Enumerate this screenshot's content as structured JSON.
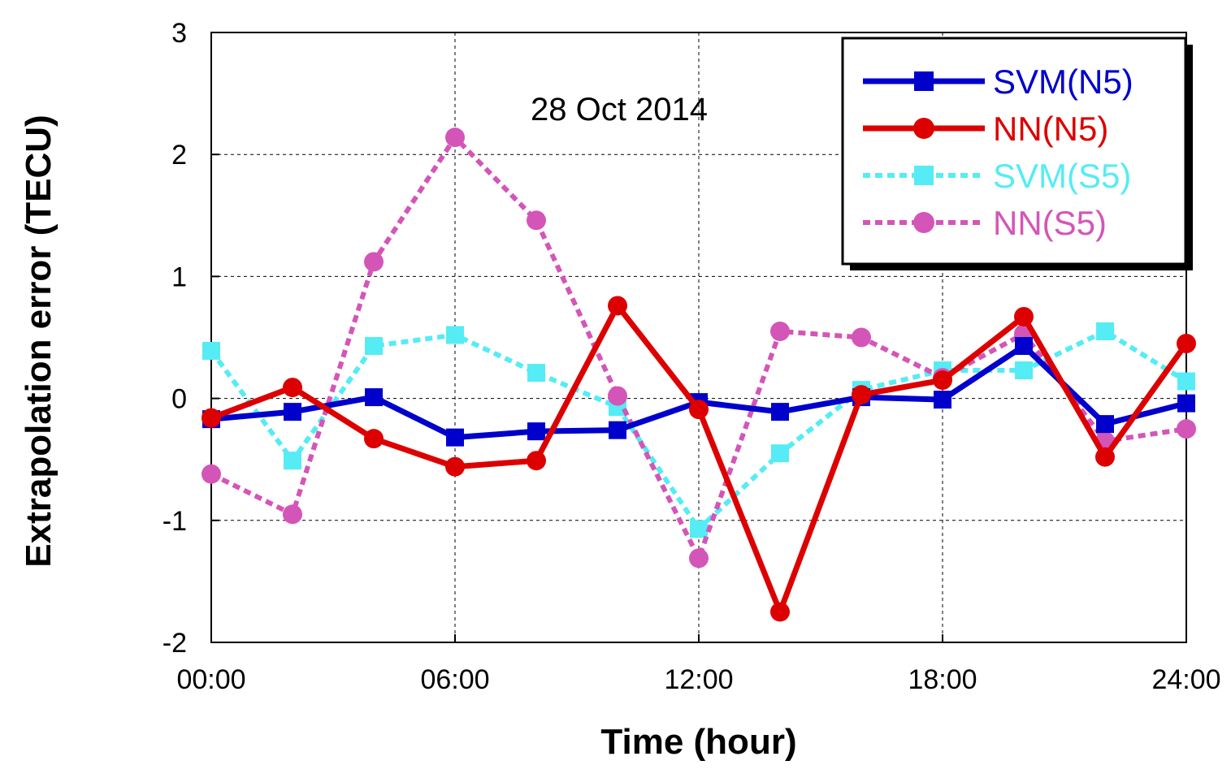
{
  "chart_data": {
    "type": "line",
    "title": "",
    "annotation": "28 Oct 2014",
    "xlabel": "Time (hour)",
    "ylabel": "Extrapolation error (TECU)",
    "xlim": [
      0,
      24
    ],
    "ylim": [
      -2,
      3
    ],
    "x_ticks": [
      0,
      6,
      12,
      18,
      24
    ],
    "x_tick_labels": [
      "00:00",
      "06:00",
      "12:00",
      "18:00",
      "24:00"
    ],
    "y_ticks": [
      -2,
      -1,
      0,
      1,
      2,
      3
    ],
    "y_tick_labels": [
      "-2",
      "-1",
      "0",
      "1",
      "2",
      "3"
    ],
    "grid": true,
    "legend_position": "top-right",
    "x": [
      0,
      2,
      4,
      6,
      8,
      10,
      12,
      14,
      16,
      18,
      20,
      22,
      24
    ],
    "series": [
      {
        "name": "SVM(N5)",
        "color": "#0000cc",
        "marker": "square",
        "dashed": false,
        "values": [
          -0.17,
          -0.11,
          0.01,
          -0.32,
          -0.27,
          -0.26,
          -0.03,
          -0.11,
          0.01,
          -0.01,
          0.43,
          -0.21,
          -0.04
        ]
      },
      {
        "name": "NN(N5)",
        "color": "#dd0000",
        "marker": "circle",
        "dashed": false,
        "values": [
          -0.16,
          0.09,
          -0.33,
          -0.56,
          -0.51,
          0.76,
          -0.09,
          -1.75,
          0.03,
          0.15,
          0.67,
          -0.48,
          0.45
        ]
      },
      {
        "name": "SVM(S5)",
        "color": "#55ecf5",
        "marker": "square",
        "dashed": true,
        "values": [
          0.39,
          -0.51,
          0.43,
          0.52,
          0.21,
          -0.07,
          -1.07,
          -0.45,
          0.07,
          0.23,
          0.23,
          0.55,
          0.14
        ]
      },
      {
        "name": "NN(S5)",
        "color": "#d455b8",
        "marker": "circle",
        "dashed": true,
        "values": [
          -0.62,
          -0.95,
          1.12,
          2.14,
          1.46,
          0.02,
          -1.31,
          0.55,
          0.5,
          0.17,
          0.53,
          -0.35,
          -0.25
        ]
      }
    ]
  }
}
